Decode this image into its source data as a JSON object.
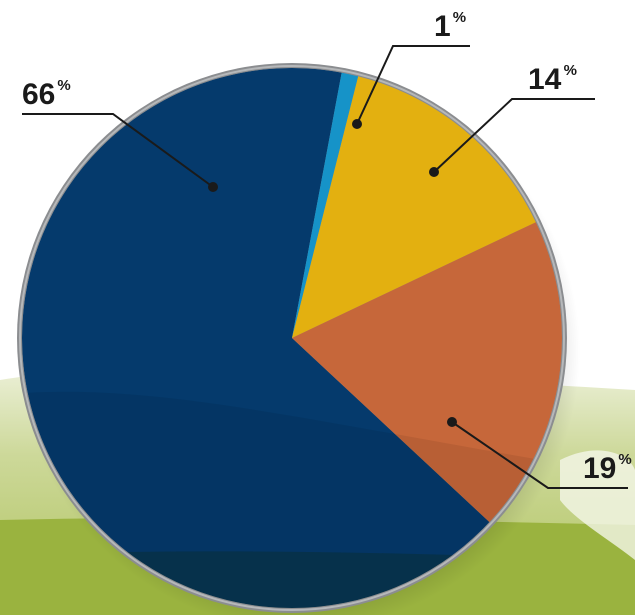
{
  "chart_data": {
    "type": "pie",
    "slices": [
      {
        "value": 66,
        "label": "66",
        "unit": "%",
        "color": "#053a6c"
      },
      {
        "value": 1,
        "label": "1",
        "unit": "%",
        "color": "#1693c8"
      },
      {
        "value": 14,
        "label": "14",
        "unit": "%",
        "color": "#e3b010"
      },
      {
        "value": 19,
        "label": "19",
        "unit": "%",
        "color": "#c6673a"
      }
    ],
    "rim_color": "#8b8d90",
    "background_color": "#a8bf4d"
  }
}
